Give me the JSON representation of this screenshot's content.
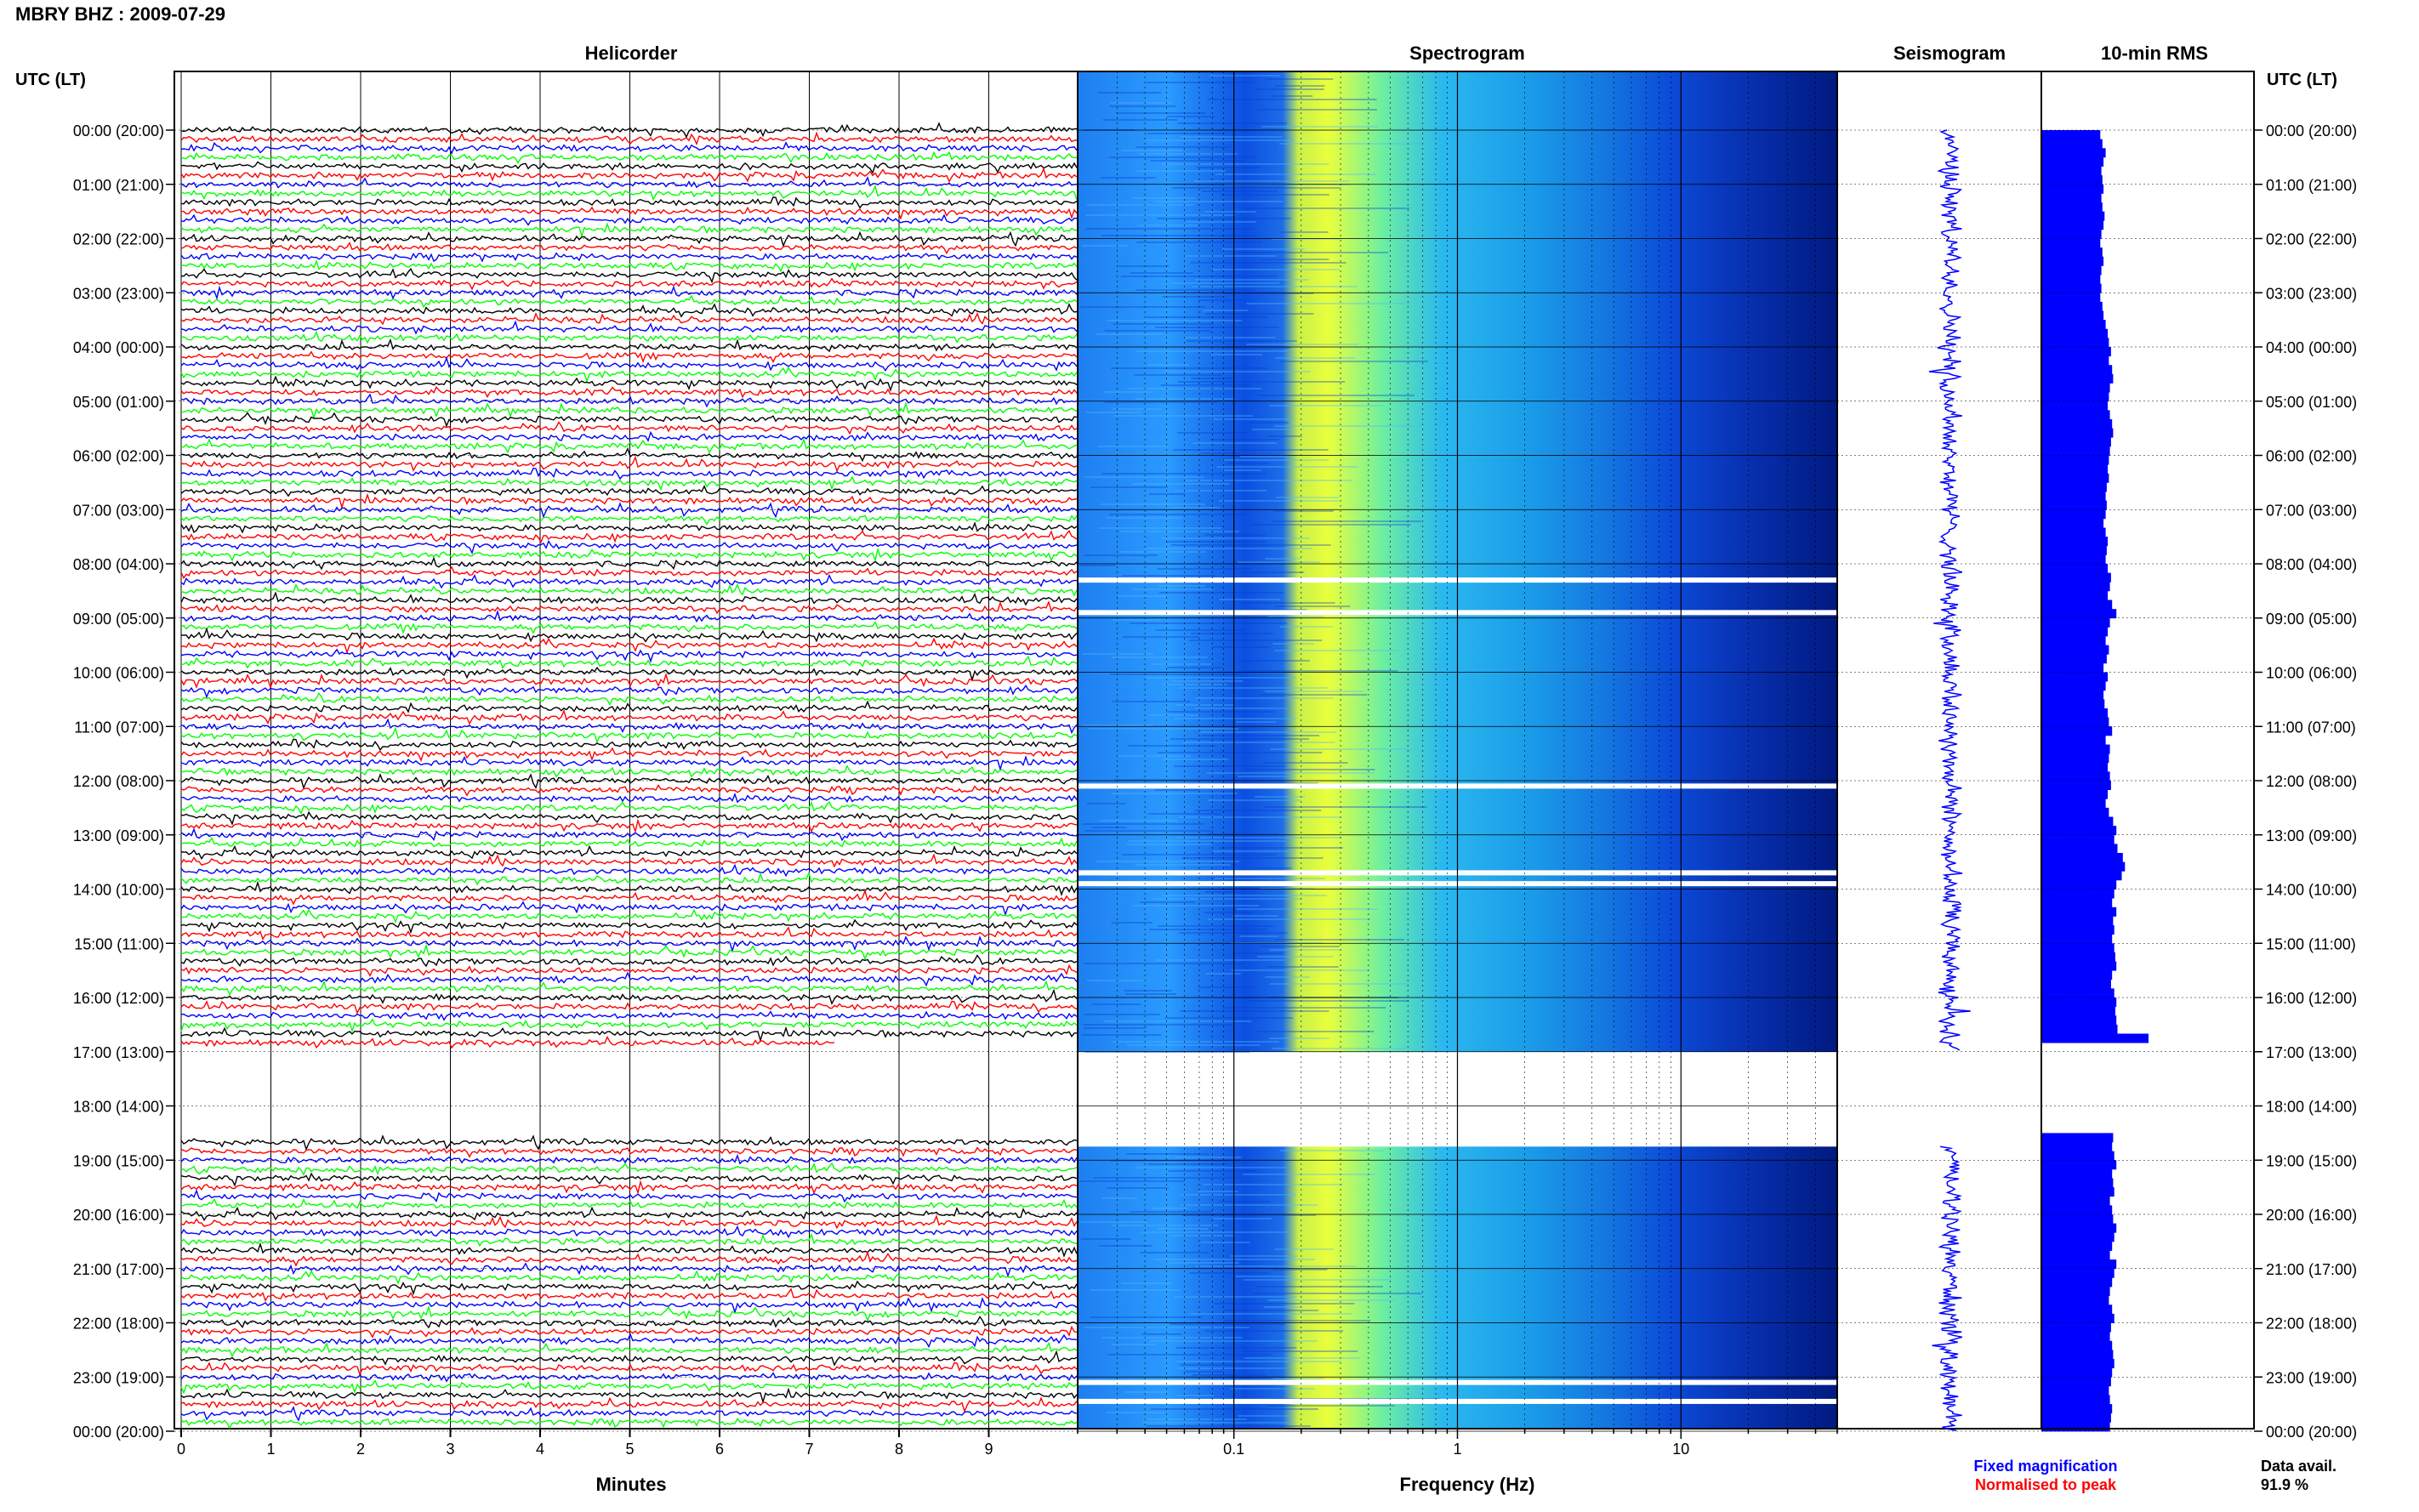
{
  "header": {
    "station": "MBRY BHZ",
    "separator": " : ",
    "date": "2009-07-29"
  },
  "panel_titles": {
    "helicorder": "Helicorder",
    "spectrogram": "Spectrogram",
    "seismogram": "Seismogram",
    "rms": "10-min RMS"
  },
  "axis_labels": {
    "left_time": "UTC (LT)",
    "right_time": "UTC (LT)",
    "minutes": "Minutes",
    "frequency": "Frequency (Hz)"
  },
  "legend": {
    "fixed": "Fixed magnification",
    "normalised": "Normalised to peak",
    "fixed_color": "#0000ff",
    "normalised_color": "#ff0000"
  },
  "data_availability": {
    "label": "Data avail.",
    "value": "91.9 %"
  },
  "colors": {
    "trace_cycle": [
      "#000000",
      "#ff0000",
      "#0000ff",
      "#00ff00"
    ],
    "rms_bar": "#0000ff",
    "seismogram": "#0000ff"
  },
  "chart_data": [
    {
      "type": "line",
      "panel": "Helicorder",
      "xlabel": "Minutes",
      "x_ticks": [
        0,
        1,
        2,
        3,
        4,
        5,
        6,
        7,
        8,
        9
      ],
      "xlim": [
        0,
        10
      ],
      "time_labels": [
        "00:00 (20:00)",
        "01:00 (21:00)",
        "02:00 (22:00)",
        "03:00 (23:00)",
        "04:00 (00:00)",
        "05:00 (01:00)",
        "06:00 (02:00)",
        "07:00 (03:00)",
        "08:00 (04:00)",
        "09:00 (05:00)",
        "10:00 (06:00)",
        "11:00 (07:00)",
        "12:00 (08:00)",
        "13:00 (09:00)",
        "14:00 (10:00)",
        "15:00 (11:00)",
        "16:00 (12:00)",
        "17:00 (13:00)",
        "18:00 (14:00)",
        "19:00 (15:00)",
        "20:00 (16:00)",
        "21:00 (17:00)",
        "22:00 (18:00)",
        "23:00 (19:00)",
        "00:00 (20:00)"
      ],
      "data_gap_hours": [
        17.0,
        18.75
      ],
      "data_end_minute_hour16": 7.3,
      "data_start_minute_hour18": 3.8,
      "grid": true
    },
    {
      "type": "heatmap",
      "panel": "Spectrogram",
      "xlabel": "Frequency (Hz)",
      "x_scale": "log",
      "xlim": [
        0.02,
        50
      ],
      "x_tick_labels": [
        "0.1",
        "1",
        "10"
      ],
      "x_ticks": [
        0.1,
        1,
        10
      ],
      "data_gap_hours": [
        17.0,
        18.75
      ],
      "dropout_hours": [
        8.3,
        8.9,
        12.1,
        13.7,
        13.9,
        23.1,
        23.45
      ],
      "grid": true
    },
    {
      "type": "line",
      "panel": "Seismogram",
      "data_gap_hours": [
        17.0,
        18.75
      ],
      "grid": true
    },
    {
      "type": "bar",
      "panel": "10-min RMS",
      "orientation": "horizontal",
      "units": "relative",
      "hours_start": 0,
      "hours_end": 24,
      "values_relative": [
        0.55,
        0.57,
        0.6,
        0.58,
        0.56,
        0.57,
        0.58,
        0.56,
        0.57,
        0.59,
        0.58,
        0.56,
        0.55,
        0.57,
        0.58,
        0.56,
        0.55,
        0.56,
        0.55,
        0.57,
        0.58,
        0.6,
        0.62,
        0.63,
        0.65,
        0.63,
        0.66,
        0.67,
        0.64,
        0.63,
        0.62,
        0.64,
        0.66,
        0.67,
        0.65,
        0.64,
        0.63,
        0.62,
        0.63,
        0.61,
        0.6,
        0.61,
        0.6,
        0.58,
        0.6,
        0.62,
        0.61,
        0.6,
        0.62,
        0.65,
        0.64,
        0.62,
        0.66,
        0.7,
        0.64,
        0.62,
        0.6,
        0.63,
        0.61,
        0.58,
        0.62,
        0.6,
        0.58,
        0.59,
        0.62,
        0.63,
        0.66,
        0.6,
        0.64,
        0.63,
        0.62,
        0.64,
        0.65,
        0.62,
        0.6,
        0.63,
        0.67,
        0.7,
        0.68,
        0.71,
        0.76,
        0.78,
        0.75,
        0.7,
        0.68,
        0.66,
        0.7,
        0.67,
        0.68,
        0.66,
        0.68,
        0.69,
        0.7,
        0.66,
        0.65,
        0.68,
        0.7,
        0.69,
        0.7,
        0.71,
        1.0,
        0,
        0,
        0,
        0,
        0,
        0,
        0,
        0,
        0,
        0,
        0.67,
        0.66,
        0.68,
        0.7,
        0.66,
        0.67,
        0.68,
        0.64,
        0.66,
        0.67,
        0.7,
        0.68,
        0.66,
        0.64,
        0.7,
        0.68,
        0.66,
        0.64,
        0.63,
        0.66,
        0.68,
        0.65,
        0.64,
        0.66,
        0.67,
        0.68,
        0.66,
        0.65,
        0.63,
        0.64,
        0.66,
        0.65,
        0.64
      ],
      "grid": true
    }
  ]
}
